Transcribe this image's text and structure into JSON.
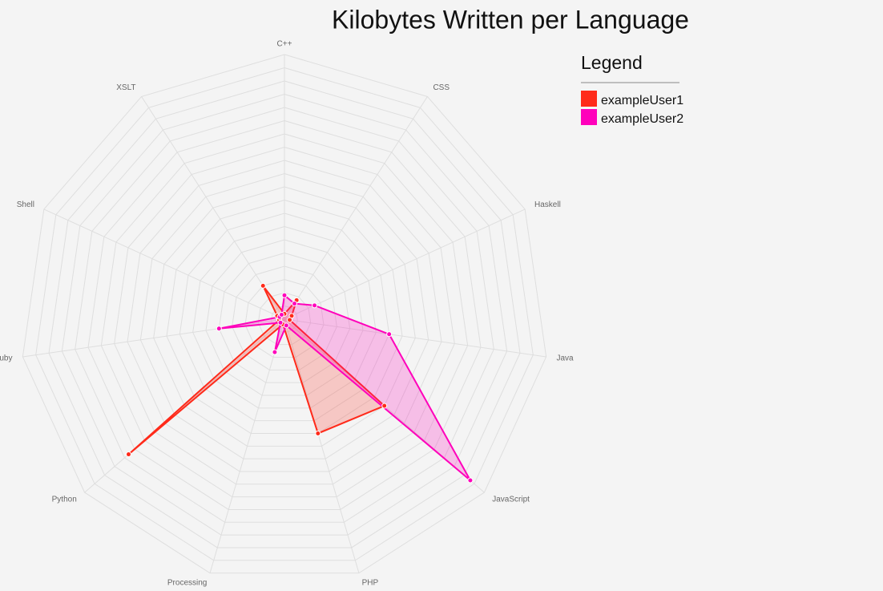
{
  "chart_data": {
    "type": "radar",
    "title": "Kilobytes Written per Language",
    "legend_title": "Legend",
    "legend_position": "top-right",
    "grid": true,
    "categories": [
      "C++",
      "CSS",
      "Haskell",
      "Java",
      "JavaScript",
      "PHP",
      "Processing",
      "Python",
      "Ruby",
      "Shell",
      "XSLT"
    ],
    "ylim": [
      0,
      100
    ],
    "series": [
      {
        "name": "exampleUser1",
        "color": "#ff2a1a",
        "values": [
          2,
          8.5,
          3,
          2,
          50,
          45,
          2,
          78,
          2,
          3,
          15
        ]
      },
      {
        "name": "exampleUser2",
        "color": "#ff00bb",
        "values": [
          9,
          7,
          12.5,
          40,
          93,
          2.5,
          13,
          2,
          25,
          2,
          2
        ]
      }
    ]
  }
}
